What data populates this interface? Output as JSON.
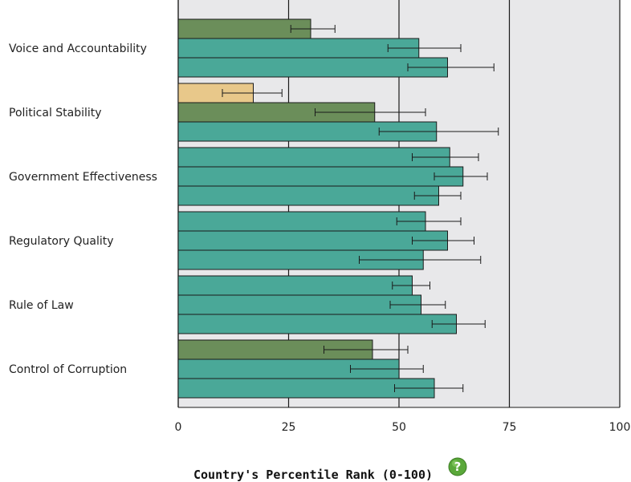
{
  "chart_data": {
    "type": "bar",
    "orientation": "horizontal",
    "xlabel": "Country's Percentile Rank (0-100)",
    "xlim": [
      0,
      100
    ],
    "xticks": [
      0,
      25,
      50,
      75,
      100
    ],
    "categories": [
      "Voice and Accountability",
      "Political Stability",
      "Government Effectiveness",
      "Regulatory Quality",
      "Rule of Law",
      "Control of Corruption"
    ],
    "groups": [
      [
        {
          "value": 30,
          "low": 25.5,
          "high": 35.5,
          "color": "#6b8e5a"
        },
        {
          "value": 54.5,
          "low": 47.5,
          "high": 64,
          "color": "#4aa898"
        },
        {
          "value": 61,
          "low": 52,
          "high": 71.5,
          "color": "#4aa898"
        }
      ],
      [
        {
          "value": 17,
          "low": 10,
          "high": 23.5,
          "color": "#e8c88a"
        },
        {
          "value": 44.5,
          "low": 31,
          "high": 56,
          "color": "#6b8e5a"
        },
        {
          "value": 58.5,
          "low": 45.5,
          "high": 72.5,
          "color": "#4aa898"
        }
      ],
      [
        {
          "value": 61.5,
          "low": 53,
          "high": 68,
          "color": "#4aa898"
        },
        {
          "value": 64.5,
          "low": 58,
          "high": 70,
          "color": "#4aa898"
        },
        {
          "value": 59,
          "low": 53.5,
          "high": 64,
          "color": "#4aa898"
        }
      ],
      [
        {
          "value": 56,
          "low": 49.5,
          "high": 64,
          "color": "#4aa898"
        },
        {
          "value": 61,
          "low": 53,
          "high": 67,
          "color": "#4aa898"
        },
        {
          "value": 55.5,
          "low": 41,
          "high": 68.5,
          "color": "#4aa898"
        }
      ],
      [
        {
          "value": 53,
          "low": 48.5,
          "high": 57,
          "color": "#4aa898"
        },
        {
          "value": 55,
          "low": 48,
          "high": 60.5,
          "color": "#4aa898"
        },
        {
          "value": 63,
          "low": 57.5,
          "high": 69.5,
          "color": "#4aa898"
        }
      ],
      [
        {
          "value": 44,
          "low": 33,
          "high": 52,
          "color": "#6b8e5a"
        },
        {
          "value": 50,
          "low": 39,
          "high": 55.5,
          "color": "#4aa898"
        },
        {
          "value": 58,
          "low": 49,
          "high": 64.5,
          "color": "#4aa898"
        }
      ]
    ],
    "grid": true,
    "colors": {
      "plot_background": "#e8e8ea",
      "teal": "#4aa898",
      "olive": "#6b8e5a",
      "tan": "#e8c88a",
      "help_icon": "#5aa83a"
    }
  },
  "help_icon": "question-mark-icon"
}
